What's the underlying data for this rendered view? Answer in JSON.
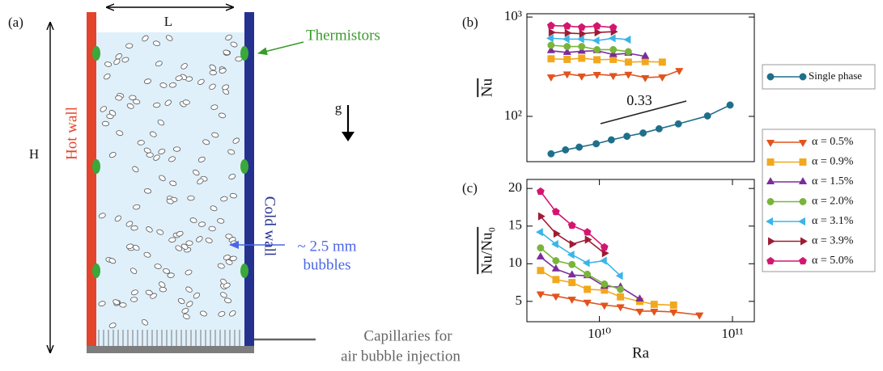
{
  "schematic": {
    "label": "(a)",
    "width_label": "L",
    "height_label": "H",
    "gravity_label": "g",
    "hot_wall": "Hot wall",
    "cold_wall": "Cold wall",
    "thermistors": "Thermistors",
    "bubbles": [
      "~ 2.5 mm",
      "bubbles"
    ],
    "capillaries": [
      "Capillaries for",
      "air bubble injection"
    ]
  },
  "chart_data": [
    {
      "type": "line",
      "label": "(b)",
      "ylabel": "Nu",
      "xscale": "log",
      "yscale": "log",
      "xlim": [
        2850000000.0,
        146000000000.0
      ],
      "ylim": [
        35,
        1080
      ],
      "yticks": [
        {
          "value": 100,
          "label": "10²"
        },
        {
          "value": 1000,
          "label": "10³"
        }
      ],
      "annotations": [
        "0.33"
      ],
      "series": [
        {
          "name": "Single phase",
          "color": "#1f6f8b",
          "marker": "o",
          "x": [
            4330000000.0,
            5560000000.0,
            7050000000.0,
            9460000000.0,
            12300000000.0,
            16100000000.0,
            21300000000.0,
            28100000000.0,
            39200000000.0,
            64900000000.0,
            96000000000.0
          ],
          "values": [
            42,
            46,
            49,
            53,
            58,
            63,
            68,
            75,
            84,
            101,
            130
          ]
        },
        {
          "name": "α = 0.5%",
          "color": "#e2531d",
          "marker": "v",
          "x": [
            4330000000.0,
            5720000000.0,
            7360000000.0,
            9590000000.0,
            12700000000.0,
            16500000000.0,
            22100000000.0,
            29700000000.0,
            39800000000.0
          ],
          "values": [
            250,
            268,
            255,
            265,
            258,
            266,
            246,
            250,
            290
          ]
        },
        {
          "name": "α = 0.9%",
          "color": "#f2a81d",
          "marker": "s",
          "x": [
            4330000000.0,
            5720000000.0,
            7360000000.0,
            9590000000.0,
            12700000000.0,
            16500000000.0,
            22100000000.0,
            29700000000.0
          ],
          "values": [
            380,
            375,
            385,
            372,
            375,
            352,
            356,
            352
          ]
        },
        {
          "name": "α = 1.5%",
          "color": "#7b2d9b",
          "marker": "^",
          "x": [
            4330000000.0,
            5720000000.0,
            7360000000.0,
            9590000000.0,
            12700000000.0,
            16500000000.0,
            22100000000.0
          ],
          "values": [
            458,
            440,
            452,
            458,
            420,
            432,
            402
          ]
        },
        {
          "name": "α = 2.0%",
          "color": "#79b43b",
          "marker": "o",
          "x": [
            4330000000.0,
            5720000000.0,
            7360000000.0,
            9590000000.0,
            12700000000.0,
            16500000000.0
          ],
          "values": [
            520,
            505,
            505,
            470,
            470,
            448
          ]
        },
        {
          "name": "α = 3.1%",
          "color": "#3bb5e9",
          "marker": "<",
          "x": [
            4330000000.0,
            5720000000.0,
            7360000000.0,
            9590000000.0,
            12700000000.0,
            16500000000.0
          ],
          "values": [
            612,
            600,
            600,
            580,
            612,
            592
          ]
        },
        {
          "name": "α = 3.9%",
          "color": "#9d1c33",
          "marker": ">",
          "x": [
            4330000000.0,
            5720000000.0,
            7360000000.0,
            9590000000.0,
            12700000000.0
          ],
          "values": [
            700,
            690,
            680,
            700,
            712
          ]
        },
        {
          "name": "α = 5.0%",
          "color": "#d4156f",
          "marker": "p",
          "x": [
            4330000000.0,
            5720000000.0,
            7360000000.0,
            9590000000.0,
            12700000000.0
          ],
          "values": [
            820,
            812,
            790,
            812,
            785
          ]
        }
      ]
    },
    {
      "type": "line",
      "label": "(c)",
      "xlabel": "Ra",
      "ylabel": "Nu/Nu₀",
      "xscale": "log",
      "yscale": "linear",
      "xlim": [
        2850000000.0,
        146000000000.0
      ],
      "ylim": [
        2.3,
        21.2
      ],
      "xticks": [
        {
          "value": 10000000000.0,
          "label": "10¹⁰"
        },
        {
          "value": 100000000000.0,
          "label": "10¹¹"
        }
      ],
      "yticks": [
        5,
        10,
        15,
        20
      ],
      "series": [
        {
          "color": "#e2531d",
          "marker": "v",
          "x": [
            3610000000.0,
            4710000000.0,
            6220000000.0,
            8110000000.0,
            10900000000.0,
            14400000000.0,
            20100000000.0,
            25800000000.0,
            36100000000.0,
            56500000000.0
          ],
          "values": [
            6.0,
            5.7,
            5.3,
            4.9,
            4.5,
            4.3,
            3.7,
            3.7,
            3.6,
            3.2
          ]
        },
        {
          "color": "#f2a81d",
          "marker": "s",
          "x": [
            3610000000.0,
            4710000000.0,
            6220000000.0,
            8110000000.0,
            10900000000.0,
            14400000000.0,
            20100000000.0,
            25800000000.0,
            36100000000.0
          ],
          "values": [
            9.1,
            7.9,
            7.5,
            6.6,
            6.5,
            5.6,
            5.0,
            4.6,
            4.5
          ]
        },
        {
          "color": "#7b2d9b",
          "marker": "^",
          "x": [
            3610000000.0,
            4710000000.0,
            6220000000.0,
            8110000000.0,
            10900000000.0,
            14400000000.0,
            20100000000.0
          ],
          "values": [
            10.9,
            9.3,
            8.5,
            8.4,
            7.0,
            6.9,
            5.3
          ]
        },
        {
          "color": "#79b43b",
          "marker": "o",
          "x": [
            3610000000.0,
            4710000000.0,
            6220000000.0,
            8110000000.0,
            10900000000.0,
            14400000000.0
          ],
          "values": [
            12.1,
            10.4,
            9.9,
            8.6,
            7.3,
            6.6
          ]
        },
        {
          "color": "#3bb5e9",
          "marker": "<",
          "x": [
            3610000000.0,
            4710000000.0,
            6220000000.0,
            8110000000.0,
            10900000000.0,
            14400000000.0
          ],
          "values": [
            14.2,
            12.6,
            11.2,
            10.1,
            10.4,
            8.4
          ]
        },
        {
          "color": "#9d1c33",
          "marker": ">",
          "x": [
            3610000000.0,
            4710000000.0,
            6220000000.0,
            8110000000.0,
            10900000000.0
          ],
          "values": [
            16.3,
            14.0,
            12.6,
            13.2,
            11.4
          ]
        },
        {
          "color": "#d4156f",
          "marker": "p",
          "x": [
            3610000000.0,
            4710000000.0,
            6220000000.0,
            8110000000.0,
            10900000000.0
          ],
          "values": [
            19.6,
            16.9,
            15.1,
            14.2,
            12.2
          ]
        }
      ]
    }
  ]
}
